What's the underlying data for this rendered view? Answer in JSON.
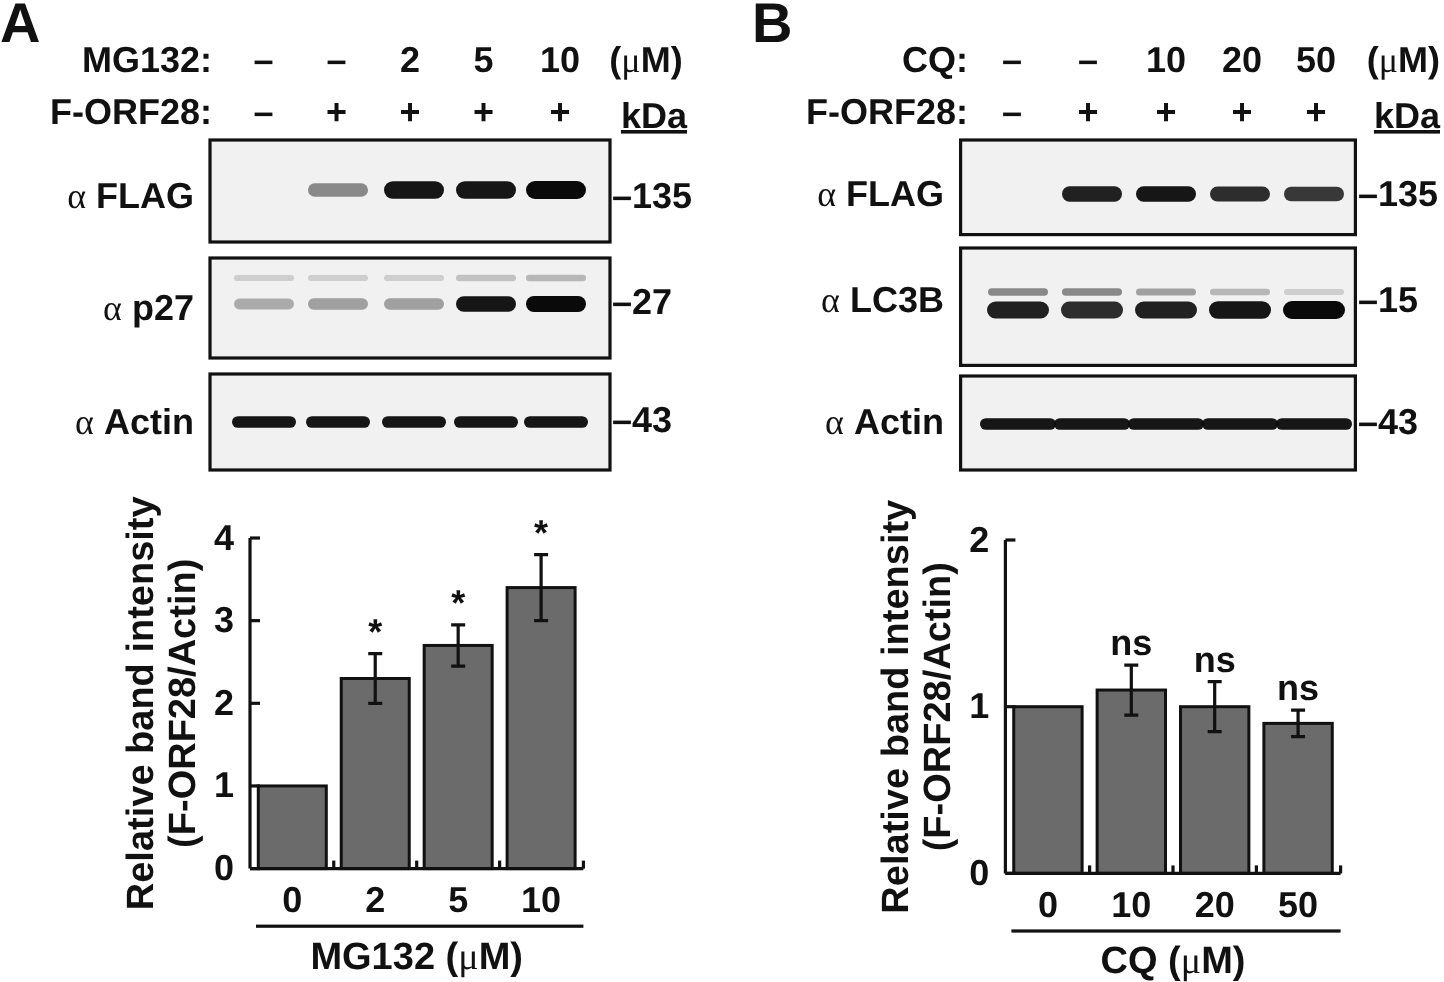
{
  "chart_data": [
    {
      "type": "bar",
      "categories": [
        "0",
        "2",
        "5",
        "10"
      ],
      "values": [
        1,
        2.3,
        2.7,
        3.4
      ],
      "errors": [
        null,
        0.3,
        0.25,
        0.4
      ],
      "color": "#6b6b6b",
      "ylim": [
        0,
        4
      ],
      "yticks": [
        0,
        1,
        2,
        3,
        4
      ],
      "ylabel": "Relative band intensity\n(F-ORF28/Actin)",
      "xlabel": "MG132 (μM)",
      "annotations": [
        "A",
        "MG132:",
        "–",
        "–",
        "2",
        "5",
        "10",
        "(μM)",
        "F-ORF28:",
        "–",
        "+",
        "+",
        "+",
        "+",
        "kDa",
        "α FLAG",
        "–135",
        "α p27",
        "–27",
        "α Actin",
        "–43",
        {
          "text": "*",
          "x": "2",
          "y": 2.6
        },
        {
          "text": "*",
          "x": "5",
          "y": 2.95
        },
        {
          "text": "*",
          "x": "10",
          "y": 3.8
        }
      ]
    },
    {
      "type": "bar",
      "categories": [
        "0",
        "10",
        "20",
        "50"
      ],
      "values": [
        1,
        1.1,
        1,
        0.9
      ],
      "errors": [
        null,
        0.15,
        0.15,
        0.08
      ],
      "color": "#6b6b6b",
      "ylim": [
        0,
        2
      ],
      "yticks": [
        0,
        1,
        2
      ],
      "ylabel": "Relative band intensity\n(F-ORF28/Actin)",
      "xlabel": "CQ (μM)",
      "annotations": [
        "B",
        "CQ:",
        "–",
        "–",
        "10",
        "20",
        "50",
        "(μM)",
        "F-ORF28:",
        "–",
        "+",
        "+",
        "+",
        "+",
        "kDa",
        "α FLAG",
        "–135",
        "α LC3B",
        "–15",
        "α Actin",
        "–43",
        {
          "text": "ns",
          "x": "10",
          "y": 1.25
        },
        {
          "text": "ns",
          "x": "20",
          "y": 1.15
        },
        {
          "text": "ns",
          "x": "50",
          "y": 0.98
        }
      ]
    }
  ]
}
